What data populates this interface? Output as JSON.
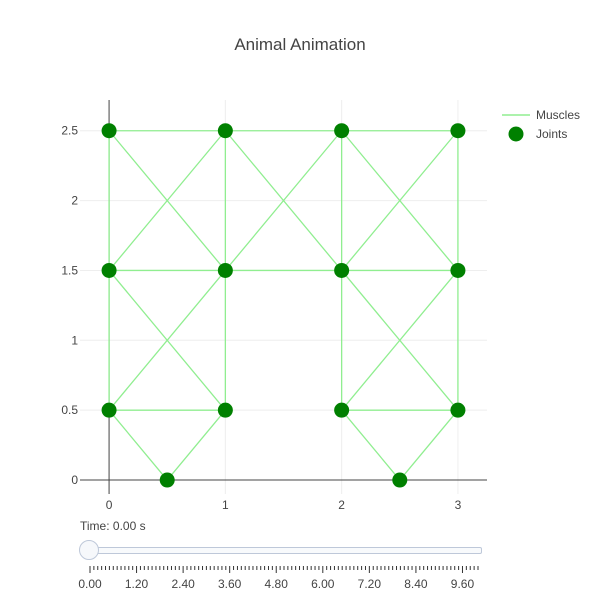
{
  "colors": {
    "muscle": "#90ee90",
    "joint": "#008000",
    "axis": "#444444",
    "grid": "#eeeeee"
  },
  "chart_data": {
    "type": "scatter",
    "title": "Animal Animation",
    "xlabel": "",
    "ylabel": "",
    "xlim": [
      -0.25,
      3.25
    ],
    "ylim": [
      -0.1,
      2.72
    ],
    "x_ticks": [
      0,
      1,
      2,
      3
    ],
    "y_ticks": [
      0,
      0.5,
      1,
      1.5,
      2,
      2.5
    ],
    "x_tick_labels": [
      "0",
      "1",
      "2",
      "3"
    ],
    "y_tick_labels": [
      "0",
      "0.5",
      "1",
      "1.5",
      "2",
      "2.5"
    ],
    "grid": true,
    "legend_placement": "top-right",
    "series": [
      {
        "name": "Muscles",
        "mode": "lines",
        "segments": [
          [
            [
              0,
              2.5
            ],
            [
              1,
              2.5
            ]
          ],
          [
            [
              1,
              2.5
            ],
            [
              2,
              2.5
            ]
          ],
          [
            [
              2,
              2.5
            ],
            [
              3,
              2.5
            ]
          ],
          [
            [
              0,
              1.5
            ],
            [
              1,
              1.5
            ]
          ],
          [
            [
              1,
              1.5
            ],
            [
              2,
              1.5
            ]
          ],
          [
            [
              2,
              1.5
            ],
            [
              3,
              1.5
            ]
          ],
          [
            [
              0,
              0.5
            ],
            [
              1,
              0.5
            ]
          ],
          [
            [
              2,
              0.5
            ],
            [
              3,
              0.5
            ]
          ],
          [
            [
              0,
              2.5
            ],
            [
              0,
              1.5
            ]
          ],
          [
            [
              0,
              1.5
            ],
            [
              0,
              0.5
            ]
          ],
          [
            [
              1,
              2.5
            ],
            [
              1,
              1.5
            ]
          ],
          [
            [
              1,
              1.5
            ],
            [
              1,
              0.5
            ]
          ],
          [
            [
              2,
              2.5
            ],
            [
              2,
              1.5
            ]
          ],
          [
            [
              2,
              1.5
            ],
            [
              2,
              0.5
            ]
          ],
          [
            [
              3,
              2.5
            ],
            [
              3,
              1.5
            ]
          ],
          [
            [
              3,
              1.5
            ],
            [
              3,
              0.5
            ]
          ],
          [
            [
              0,
              2.5
            ],
            [
              1,
              1.5
            ]
          ],
          [
            [
              1,
              2.5
            ],
            [
              0,
              1.5
            ]
          ],
          [
            [
              1,
              2.5
            ],
            [
              2,
              1.5
            ]
          ],
          [
            [
              2,
              2.5
            ],
            [
              1,
              1.5
            ]
          ],
          [
            [
              2,
              2.5
            ],
            [
              3,
              1.5
            ]
          ],
          [
            [
              3,
              2.5
            ],
            [
              2,
              1.5
            ]
          ],
          [
            [
              0,
              1.5
            ],
            [
              1,
              0.5
            ]
          ],
          [
            [
              1,
              1.5
            ],
            [
              0,
              0.5
            ]
          ],
          [
            [
              2,
              1.5
            ],
            [
              3,
              0.5
            ]
          ],
          [
            [
              3,
              1.5
            ],
            [
              2,
              0.5
            ]
          ],
          [
            [
              0,
              0.5
            ],
            [
              0.5,
              0
            ]
          ],
          [
            [
              1,
              0.5
            ],
            [
              0.5,
              0
            ]
          ],
          [
            [
              2,
              0.5
            ],
            [
              2.5,
              0
            ]
          ],
          [
            [
              3,
              0.5
            ],
            [
              2.5,
              0
            ]
          ]
        ]
      },
      {
        "name": "Joints",
        "mode": "markers",
        "points": [
          [
            0,
            2.5
          ],
          [
            1,
            2.5
          ],
          [
            2,
            2.5
          ],
          [
            3,
            2.5
          ],
          [
            0,
            1.5
          ],
          [
            1,
            1.5
          ],
          [
            2,
            1.5
          ],
          [
            3,
            1.5
          ],
          [
            0,
            0.5
          ],
          [
            1,
            0.5
          ],
          [
            2,
            0.5
          ],
          [
            3,
            0.5
          ],
          [
            0.5,
            0
          ],
          [
            2.5,
            0
          ]
        ]
      }
    ]
  },
  "slider": {
    "label": "Time: 0.00 s",
    "value": 0,
    "min": 0,
    "max": 10,
    "tick_labels": [
      "0.00",
      "1.20",
      "2.40",
      "3.60",
      "4.80",
      "6.00",
      "7.20",
      "8.40",
      "9.60"
    ]
  }
}
